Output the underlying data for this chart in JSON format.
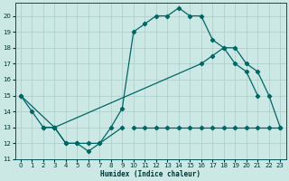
{
  "xlabel": "Humidex (Indice chaleur)",
  "bg_color": "#cce8e4",
  "grid_color": "#aaccca",
  "line_color": "#006666",
  "xlim": [
    -0.5,
    23.5
  ],
  "ylim": [
    11,
    20.8
  ],
  "yticks": [
    11,
    12,
    13,
    14,
    15,
    16,
    17,
    18,
    19,
    20
  ],
  "xticks": [
    0,
    1,
    2,
    3,
    4,
    5,
    6,
    7,
    8,
    9,
    10,
    11,
    12,
    13,
    14,
    15,
    16,
    17,
    18,
    19,
    20,
    21,
    22,
    23
  ],
  "line1_x": [
    0,
    1,
    2,
    3,
    4,
    5,
    6,
    7,
    8,
    9,
    10,
    11,
    12,
    13,
    14,
    15,
    16,
    17,
    18,
    19,
    20,
    21
  ],
  "line1_y": [
    15,
    14,
    13,
    13,
    12,
    12,
    11.5,
    12,
    13,
    14.2,
    19,
    19.5,
    20,
    20,
    20.5,
    20,
    20,
    18.5,
    18,
    17,
    16.5,
    15
  ],
  "line2_x": [
    2,
    3,
    4,
    5,
    6,
    7,
    9,
    10,
    11,
    12,
    13,
    14,
    15,
    16,
    17,
    18,
    19,
    20,
    21,
    22,
    23
  ],
  "line2_y": [
    13,
    13,
    12,
    12,
    12,
    12,
    13,
    13,
    13,
    13,
    13,
    13,
    13,
    13,
    13,
    13,
    13,
    13,
    13,
    13,
    13
  ],
  "line3_x": [
    0,
    3,
    16,
    17,
    18,
    19,
    20,
    21,
    22,
    23
  ],
  "line3_y": [
    15,
    13,
    17,
    17.5,
    18,
    18,
    17,
    16.5,
    15,
    13
  ]
}
